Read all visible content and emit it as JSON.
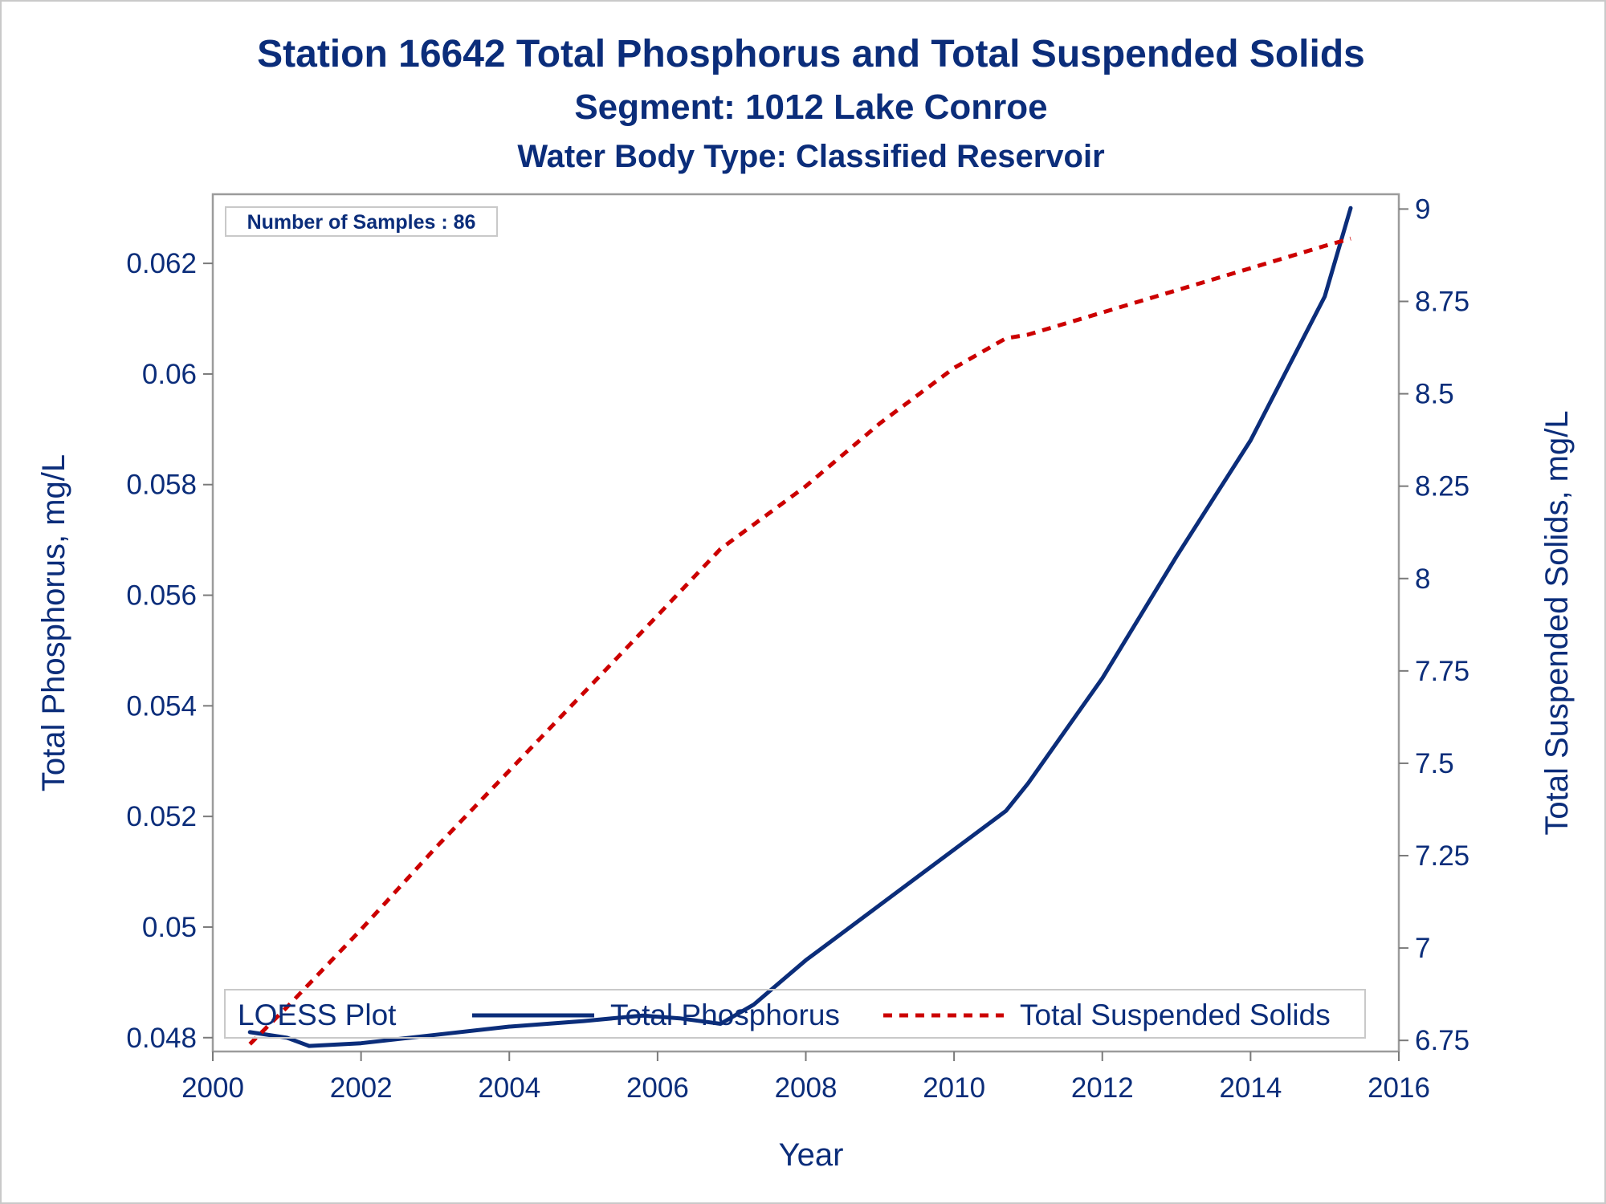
{
  "chart_data": {
    "type": "line",
    "title": "Station 16642  Total Phosphorus and Total Suspended Solids",
    "subtitle1": "Segment: 1012  Lake Conroe",
    "subtitle2": "Water Body Type: Classified Reservoir",
    "xlabel": "Year",
    "ylabel_left": "Total Phosphorus, mg/L",
    "ylabel_right": "Total Suspended Solids, mg/L",
    "x_ticks": [
      "2000",
      "2002",
      "2004",
      "2006",
      "2008",
      "2010",
      "2012",
      "2014",
      "2016"
    ],
    "x_tick_values": [
      2000,
      2002,
      2004,
      2006,
      2008,
      2010,
      2012,
      2014,
      2016
    ],
    "y_left_ticks": [
      "0.048",
      "0.05",
      "0.052",
      "0.054",
      "0.056",
      "0.058",
      "0.06",
      "0.062"
    ],
    "y_left_tick_values": [
      0.048,
      0.05,
      0.052,
      0.054,
      0.056,
      0.058,
      0.06,
      0.062
    ],
    "y_right_ticks": [
      "6.75",
      "7",
      "7.25",
      "7.5",
      "7.75",
      "8",
      "8.25",
      "8.5",
      "8.75",
      "9"
    ],
    "y_right_tick_values": [
      6.75,
      7,
      7.25,
      7.5,
      7.75,
      8,
      8.25,
      8.5,
      8.75,
      9
    ],
    "xlim": [
      2000,
      2016
    ],
    "ylim_left": [
      0.04775,
      0.06325
    ],
    "ylim_right": [
      6.72,
      9.04
    ],
    "grid": false,
    "annotation": "Number of Samples : 86",
    "legend": {
      "title": "LOESS Plot",
      "position": "bottom inside",
      "entries": [
        "Total Phosphorus",
        "Total Suspended Solids"
      ]
    },
    "series": [
      {
        "name": "Total Phosphorus",
        "axis": "left",
        "style": "solid",
        "color": "#0b2d7a",
        "x": [
          2000.5,
          2001.0,
          2001.3,
          2002.0,
          2003.0,
          2004.0,
          2005.0,
          2005.8,
          2006.3,
          2006.85,
          2007.3,
          2008.0,
          2009.0,
          2010.0,
          2010.7,
          2011.0,
          2012.0,
          2013.0,
          2014.0,
          2015.0,
          2015.35
        ],
        "y": [
          0.0481,
          0.048,
          0.04785,
          0.0479,
          0.04805,
          0.0482,
          0.0483,
          0.0484,
          0.04835,
          0.04825,
          0.0486,
          0.0494,
          0.0504,
          0.0514,
          0.0521,
          0.0526,
          0.0545,
          0.0567,
          0.0588,
          0.0614,
          0.063
        ]
      },
      {
        "name": "Total Suspended Solids",
        "axis": "right",
        "style": "dashed",
        "color": "#cc0000",
        "x": [
          2000.5,
          2001.0,
          2002.0,
          2003.0,
          2004.0,
          2005.0,
          2006.0,
          2006.85,
          2008.0,
          2009.0,
          2010.0,
          2010.7,
          2011.0,
          2012.0,
          2013.0,
          2014.0,
          2015.0,
          2015.35
        ],
        "y": [
          6.74,
          6.84,
          7.05,
          7.27,
          7.48,
          7.69,
          7.9,
          8.08,
          8.25,
          8.42,
          8.57,
          8.65,
          8.66,
          8.72,
          8.78,
          8.84,
          8.9,
          8.92
        ]
      }
    ]
  }
}
